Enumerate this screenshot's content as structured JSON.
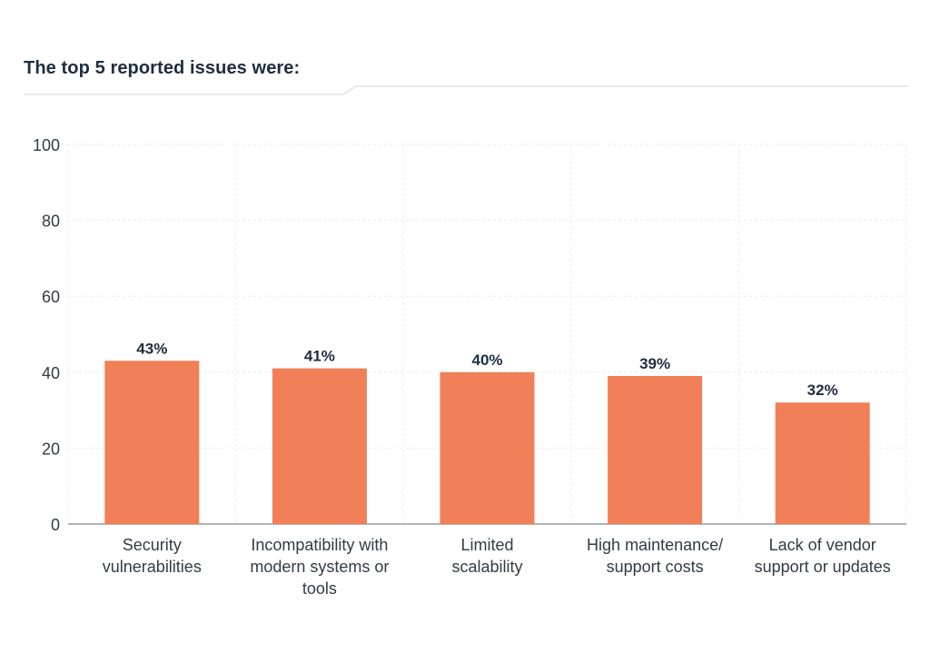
{
  "header": {
    "title": "The top 5 reported issues were:"
  },
  "colors": {
    "bar": "#f17f57",
    "title": "#1e2e3e",
    "grid": "#ececec",
    "axis": "#9a9a9a",
    "divider": "#e3e3e3"
  },
  "chart_data": {
    "type": "bar",
    "title": "",
    "xlabel": "",
    "ylabel": "",
    "ylim": [
      0,
      100
    ],
    "yticks": [
      0,
      20,
      40,
      60,
      80,
      100
    ],
    "grid": true,
    "categories": [
      [
        "Security",
        "vulnerabilities"
      ],
      [
        "Incompatibility with",
        "modern systems or",
        "tools"
      ],
      [
        "Limited",
        "scalability"
      ],
      [
        "High maintenance/",
        "support costs"
      ],
      [
        "Lack of vendor",
        "support or updates"
      ]
    ],
    "values": [
      43,
      41,
      40,
      39,
      32
    ],
    "value_labels": [
      "43%",
      "41%",
      "40%",
      "39%",
      "32%"
    ]
  }
}
